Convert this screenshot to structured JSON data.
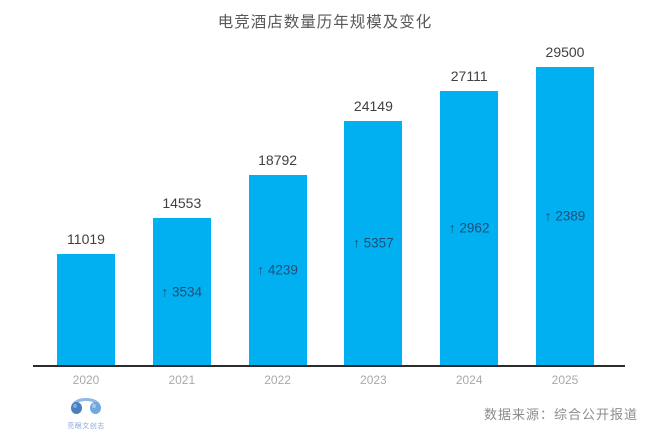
{
  "title": "电竞酒店数量历年规模及变化",
  "source_label": "数据来源：综合公开报道",
  "logo": {
    "text": "亮眼文创志"
  },
  "colors": {
    "bar": "#00b0f0",
    "value_label": "#404040",
    "delta_label": "#1f4e79",
    "axis": "#2b2b2b",
    "title_text": "#595959",
    "year_label": "#a9a9a9",
    "logo_blue_dark": "#4a7ebf",
    "logo_blue_light": "#8fb8e8"
  },
  "chart_data": {
    "type": "bar",
    "title": "电竞酒店数量历年规模及变化",
    "categories": [
      "2020",
      "2021",
      "2022",
      "2023",
      "2024",
      "2025"
    ],
    "values": [
      11019,
      14553,
      18792,
      24149,
      27111,
      29500
    ],
    "deltas": [
      null,
      3534,
      4239,
      5357,
      2962,
      2389
    ],
    "delta_labels": [
      "",
      "↑ 3534",
      "↑ 4239",
      "↑ 5357",
      "↑ 2962",
      "↑ 2389"
    ],
    "xlabel": "",
    "ylabel": "",
    "ylim": [
      0,
      29500
    ],
    "grid": false,
    "legend": false,
    "y_axis_visible": false,
    "value_labels_position": "above-bar",
    "delta_labels_position": "centered-in-bar",
    "source_note": "数据来源：综合公开报道"
  }
}
